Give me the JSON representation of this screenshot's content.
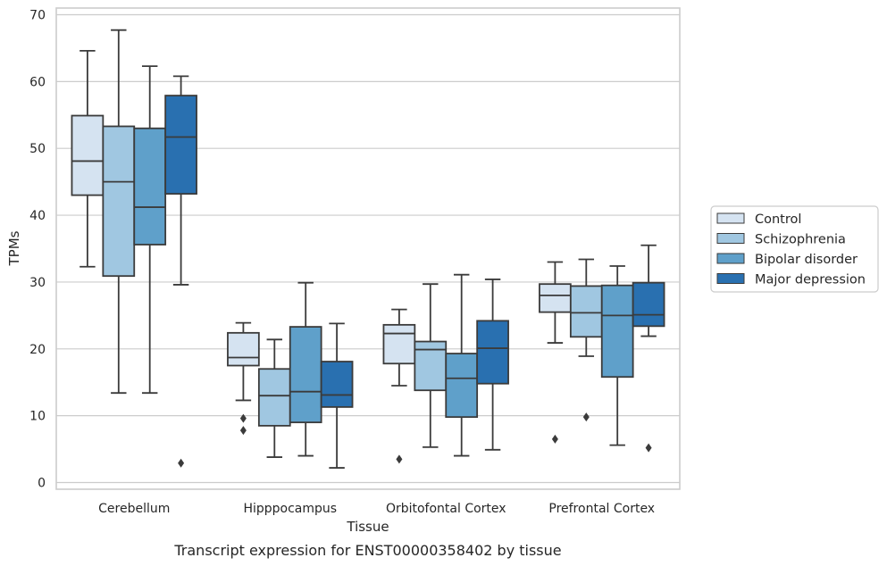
{
  "chart_data": {
    "type": "box",
    "title": "Transcript expression for ENST00000358402 by tissue",
    "xlabel": "Tissue",
    "ylabel": "TPMs",
    "ylim": [
      -1,
      71
    ],
    "yticks": [
      0,
      10,
      20,
      30,
      40,
      50,
      60,
      70
    ],
    "grid": "horizontal",
    "legend_position": "right",
    "categories": [
      "Cerebellum",
      "Hipppocampus",
      "Orbitofontal Cortex",
      "Prefrontal Cortex"
    ],
    "series": [
      {
        "name": "Control",
        "color": "#d5e3f1",
        "boxes": [
          {
            "whisker_low": 32.3,
            "q1": 43.0,
            "median": 48.1,
            "q3": 54.9,
            "whisker_high": 64.6,
            "outliers": []
          },
          {
            "whisker_low": 12.3,
            "q1": 17.5,
            "median": 18.7,
            "q3": 22.4,
            "whisker_high": 23.9,
            "outliers": [
              9.6,
              7.8
            ]
          },
          {
            "whisker_low": 14.5,
            "q1": 17.8,
            "median": 22.3,
            "q3": 23.6,
            "whisker_high": 25.9,
            "outliers": [
              3.5
            ]
          },
          {
            "whisker_low": 20.9,
            "q1": 25.5,
            "median": 28.0,
            "q3": 29.7,
            "whisker_high": 33.0,
            "outliers": [
              6.5
            ]
          }
        ]
      },
      {
        "name": "Schizophrenia",
        "color": "#a0c7e1",
        "boxes": [
          {
            "whisker_low": 13.4,
            "q1": 30.9,
            "median": 45.0,
            "q3": 53.3,
            "whisker_high": 67.7,
            "outliers": []
          },
          {
            "whisker_low": 3.8,
            "q1": 8.5,
            "median": 13.0,
            "q3": 17.0,
            "whisker_high": 21.4,
            "outliers": []
          },
          {
            "whisker_low": 5.3,
            "q1": 13.8,
            "median": 19.9,
            "q3": 21.1,
            "whisker_high": 29.7,
            "outliers": []
          },
          {
            "whisker_low": 18.9,
            "q1": 21.8,
            "median": 25.4,
            "q3": 29.4,
            "whisker_high": 33.4,
            "outliers": [
              9.8
            ]
          }
        ]
      },
      {
        "name": "Bipolar disorder",
        "color": "#5fa0ca",
        "boxes": [
          {
            "whisker_low": 13.4,
            "q1": 35.6,
            "median": 41.2,
            "q3": 53.0,
            "whisker_high": 62.3,
            "outliers": []
          },
          {
            "whisker_low": 4.0,
            "q1": 9.0,
            "median": 13.6,
            "q3": 23.3,
            "whisker_high": 29.9,
            "outliers": []
          },
          {
            "whisker_low": 4.0,
            "q1": 9.8,
            "median": 15.6,
            "q3": 19.3,
            "whisker_high": 31.1,
            "outliers": []
          },
          {
            "whisker_low": 5.6,
            "q1": 15.8,
            "median": 25.0,
            "q3": 29.5,
            "whisker_high": 32.4,
            "outliers": []
          }
        ]
      },
      {
        "name": "Major depression",
        "color": "#2970b0",
        "boxes": [
          {
            "whisker_low": 29.6,
            "q1": 43.2,
            "median": 51.7,
            "q3": 57.9,
            "whisker_high": 60.8,
            "outliers": [
              2.9
            ]
          },
          {
            "whisker_low": 2.2,
            "q1": 11.3,
            "median": 13.1,
            "q3": 18.1,
            "whisker_high": 23.8,
            "outliers": []
          },
          {
            "whisker_low": 4.9,
            "q1": 14.8,
            "median": 20.1,
            "q3": 24.2,
            "whisker_high": 30.4,
            "outliers": []
          },
          {
            "whisker_low": 21.9,
            "q1": 23.4,
            "median": 25.1,
            "q3": 29.9,
            "whisker_high": 35.5,
            "outliers": [
              5.2
            ]
          }
        ]
      }
    ]
  }
}
